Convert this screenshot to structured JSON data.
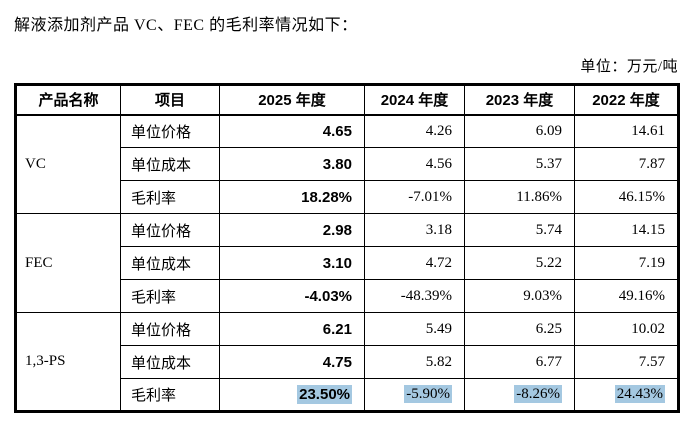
{
  "page": {
    "intro_text": "解液添加剂产品 VC、FEC 的毛利率情况如下：",
    "unit_label": "单位：万元/吨"
  },
  "table": {
    "headers": [
      "产品名称",
      "项目",
      "2025 年度",
      "2024 年度",
      "2023 年度",
      "2022 年度"
    ],
    "bold_column_index": 2,
    "highlight_color": "#a4c8e1",
    "products": [
      {
        "name": "VC",
        "rows": [
          {
            "item": "单位价格",
            "values": [
              "4.65",
              "4.26",
              "6.09",
              "14.61"
            ],
            "highlighted": false
          },
          {
            "item": "单位成本",
            "values": [
              "3.80",
              "4.56",
              "5.37",
              "7.87"
            ],
            "highlighted": false
          },
          {
            "item": "毛利率",
            "values": [
              "18.28%",
              "-7.01%",
              "11.86%",
              "46.15%"
            ],
            "highlighted": false
          }
        ]
      },
      {
        "name": "FEC",
        "rows": [
          {
            "item": "单位价格",
            "values": [
              "2.98",
              "3.18",
              "5.74",
              "14.15"
            ],
            "highlighted": false
          },
          {
            "item": "单位成本",
            "values": [
              "3.10",
              "4.72",
              "5.22",
              "7.19"
            ],
            "highlighted": false
          },
          {
            "item": "毛利率",
            "values": [
              "-4.03%",
              "-48.39%",
              "9.03%",
              "49.16%"
            ],
            "highlighted": false
          }
        ]
      },
      {
        "name": "1,3-PS",
        "rows": [
          {
            "item": "单位价格",
            "values": [
              "6.21",
              "5.49",
              "6.25",
              "10.02"
            ],
            "highlighted": false
          },
          {
            "item": "单位成本",
            "values": [
              "4.75",
              "5.82",
              "6.77",
              "7.57"
            ],
            "highlighted": false
          },
          {
            "item": "毛利率",
            "values": [
              "23.50%",
              "-5.90%",
              "-8.26%",
              "24.43%"
            ],
            "highlighted": true
          }
        ]
      }
    ]
  }
}
